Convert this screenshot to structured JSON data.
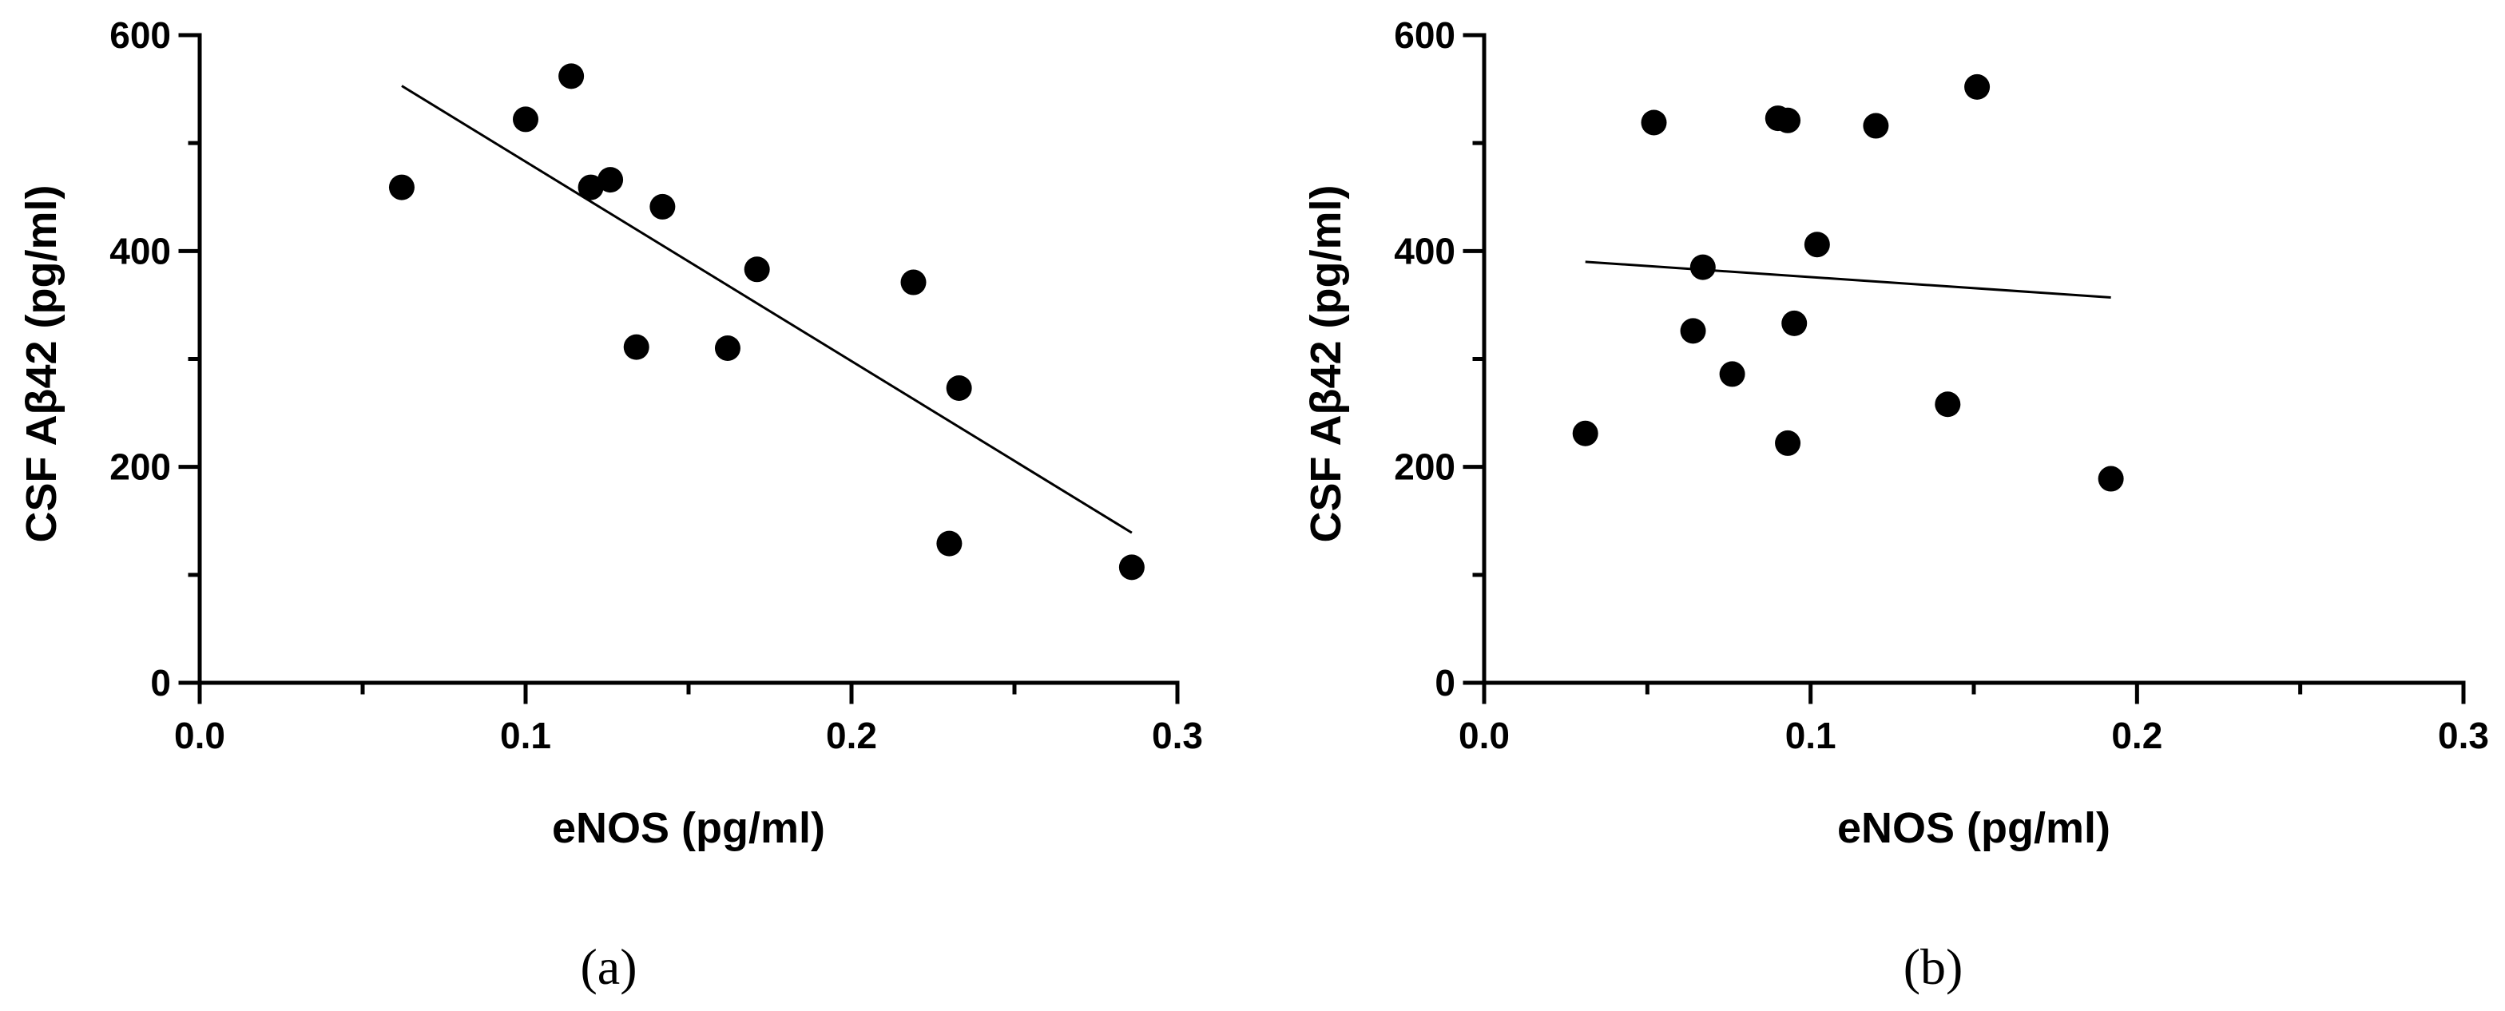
{
  "chart_data": [
    {
      "type": "scatter",
      "panel_label": "(a)",
      "xlabel": "eNOS (pg/ml)",
      "ylabel": "CSF Aβ42 (pg/ml)",
      "xlim": [
        0,
        0.3
      ],
      "ylim": [
        0,
        600
      ],
      "x_ticks": [
        "0.0",
        "0.1",
        "0.2",
        "0.3"
      ],
      "y_ticks": [
        "0",
        "200",
        "400",
        "600"
      ],
      "points": {
        "x": [
          0.062,
          0.1,
          0.114,
          0.12,
          0.126,
          0.134,
          0.142,
          0.162,
          0.171,
          0.219,
          0.23,
          0.233,
          0.286
        ],
        "y": [
          459,
          522,
          562,
          459,
          466,
          311,
          441,
          310,
          383,
          371,
          129,
          273,
          107
        ]
      },
      "fit_line": {
        "x": [
          0.062,
          0.286
        ],
        "y": [
          553,
          139
        ]
      }
    },
    {
      "type": "scatter",
      "panel_label": "(b)",
      "xlabel": "eNOS (pg/ml)",
      "ylabel": "CSF Aβ42 (pg/ml)",
      "xlim": [
        0,
        0.3
      ],
      "ylim": [
        0,
        600
      ],
      "x_ticks": [
        "0.0",
        "0.1",
        "0.2",
        "0.3"
      ],
      "y_ticks": [
        "0",
        "200",
        "400",
        "600"
      ],
      "points": {
        "x": [
          0.031,
          0.052,
          0.064,
          0.067,
          0.076,
          0.09,
          0.093,
          0.093,
          0.095,
          0.102,
          0.12,
          0.142,
          0.151,
          0.192
        ],
        "y": [
          231,
          519,
          326,
          385,
          286,
          523,
          521,
          222,
          333,
          406,
          516,
          258,
          552,
          189
        ]
      },
      "fit_line": {
        "x": [
          0.031,
          0.192
        ],
        "y": [
          390,
          357
        ]
      }
    }
  ]
}
